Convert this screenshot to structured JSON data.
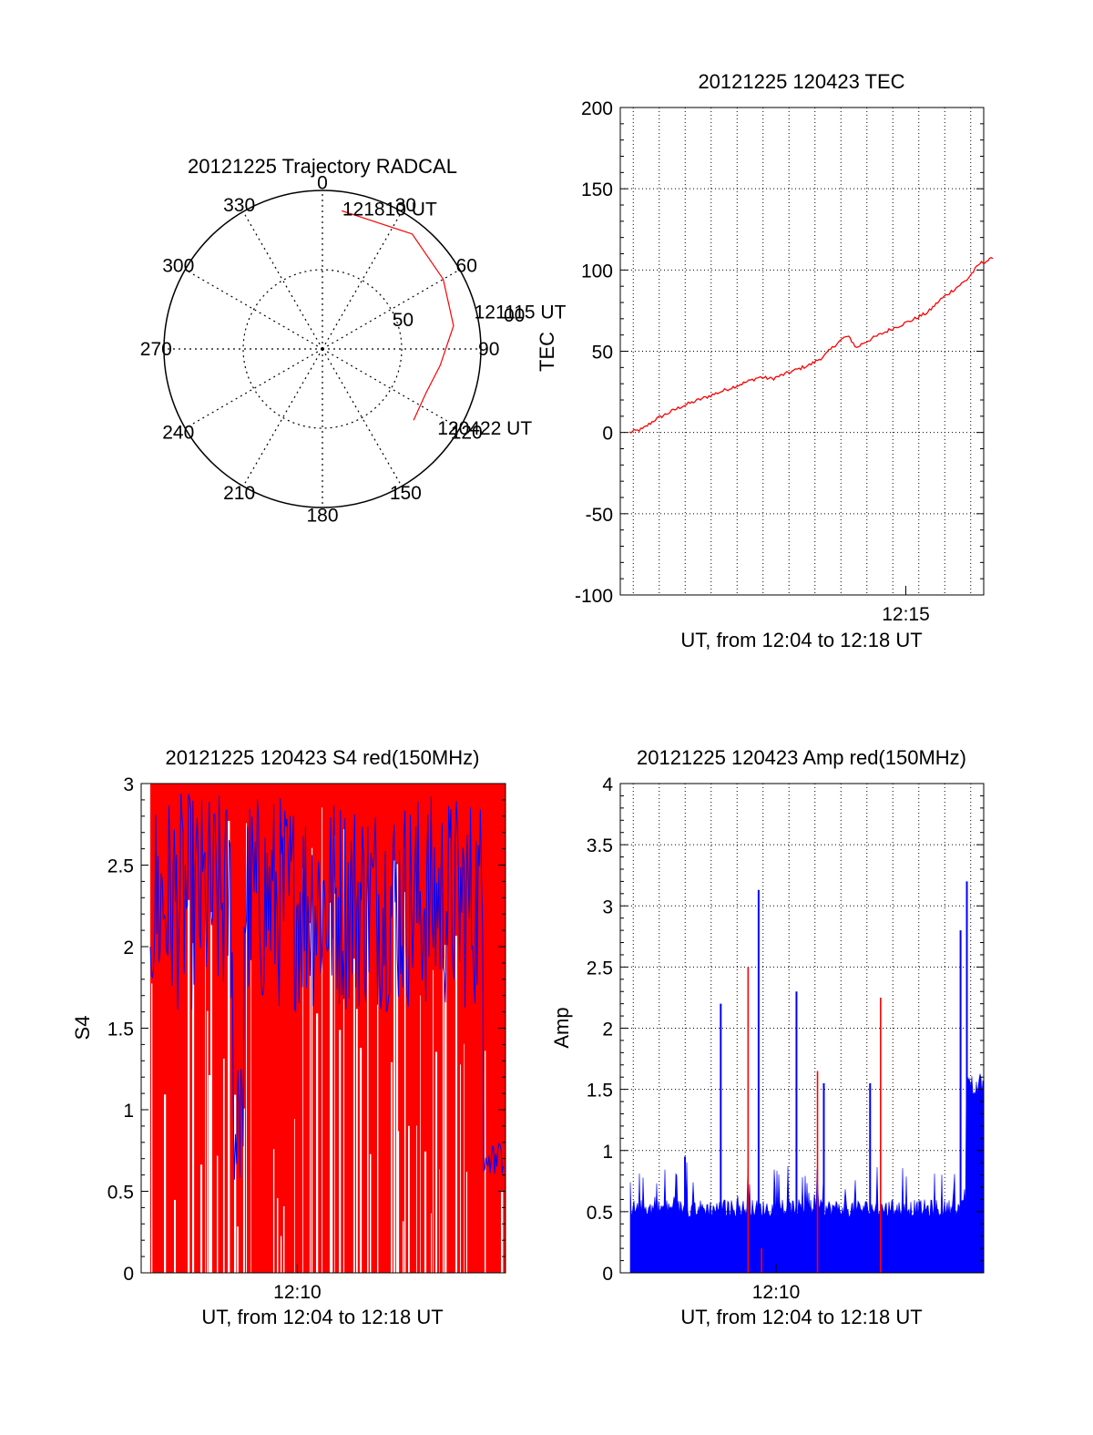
{
  "colors": {
    "primary": "#ff0000",
    "secondary": "#0000ff",
    "axis": "#000000",
    "grid": "#000000"
  },
  "chart_data": [
    {
      "id": "trajectory",
      "type": "polar",
      "title": "20121225 Trajectory RADCAL",
      "angle_labels": [
        "0",
        "30",
        "60",
        "90",
        "120",
        "150",
        "180",
        "210",
        "240",
        "270",
        "300",
        "330"
      ],
      "angles_deg": [
        0,
        30,
        60,
        90,
        120,
        150,
        180,
        210,
        240,
        270,
        300,
        330
      ],
      "radial_ticks": [
        {
          "label": "50",
          "zenith_deg": 50
        }
      ],
      "rmax_deg": 100,
      "series": [
        {
          "color": "#ff0000",
          "points": [
            {
              "az": 8,
              "zen": 88
            },
            {
              "az": 38,
              "zen": 92
            },
            {
              "az": 60,
              "zen": 88
            },
            {
              "az": 80,
              "zen": 84
            },
            {
              "az": 98,
              "zen": 75
            },
            {
              "az": 113,
              "zen": 71
            },
            {
              "az": 128,
              "zen": 73
            }
          ]
        }
      ],
      "annotations": [
        {
          "text": "121810 UT",
          "az": 11,
          "zen": 90
        },
        {
          "text": "121115 UT",
          "az": 77,
          "zen": 103
        },
        {
          "text": "120422 UT",
          "az": 123,
          "zen": 92
        }
      ],
      "ring_label_extra": "00"
    },
    {
      "id": "tec",
      "type": "line",
      "title": "20121225 120423 TEC",
      "ylabel": "TEC",
      "xlabel": "UT, from 12:04 to 12:18 UT",
      "x_range_min": [
        0,
        840
      ],
      "ylim": [
        -100,
        200
      ],
      "yticks": [
        -100,
        -50,
        0,
        50,
        100,
        150,
        200
      ],
      "x_gridlines_min": [
        30,
        90,
        150,
        210,
        270,
        330,
        390,
        450,
        510,
        570,
        630,
        690,
        750,
        810
      ],
      "x_ticklabels": [
        {
          "label": "12:15",
          "minute": 660
        }
      ],
      "series": [
        {
          "color": "#ff0000",
          "x_min": [
            0,
            30,
            60,
            90,
            120,
            180,
            240,
            300,
            330,
            360,
            420,
            450,
            480,
            500,
            510,
            525,
            540,
            600,
            660,
            690,
            720,
            780,
            810,
            840
          ],
          "y": [
            0,
            2,
            8,
            12,
            16,
            22,
            28,
            34,
            33,
            36,
            42,
            47,
            55,
            59,
            58,
            52,
            55,
            63,
            70,
            74,
            82,
            94,
            104,
            107
          ]
        }
      ]
    },
    {
      "id": "s4",
      "type": "bar",
      "title": "20121225 120423 S4 red(150MHz)",
      "ylabel": "S4",
      "xlabel": "UT, from 12:04 to 12:18 UT",
      "x_range_min": [
        0,
        840
      ],
      "ylim": [
        0,
        3
      ],
      "yticks": [
        0,
        0.5,
        1,
        1.5,
        2,
        2.5,
        3
      ],
      "yticklabels": [
        "0",
        "0.5",
        "1",
        "1.5",
        "2",
        "2.5",
        "3"
      ],
      "x_ticklabels": [
        {
          "label": "12:10",
          "minute": 360
        }
      ],
      "series": [
        {
          "name": "",
          "color": "#ff0000",
          "note_values": "dense vertical spikes saturating to 3"
        },
        {
          "name": "",
          "color": "#0000ff"
        }
      ]
    },
    {
      "id": "amp",
      "type": "bar",
      "title": "20121225 120423 Amp red(150MHz)",
      "ylabel": "Amp",
      "xlabel": "UT, from 12:04 to 12:18 UT",
      "x_range_min": [
        0,
        840
      ],
      "ylim": [
        0,
        4
      ],
      "yticks": [
        0,
        0.5,
        1,
        1.5,
        2,
        2.5,
        3,
        3.5,
        4
      ],
      "yticklabels": [
        "0",
        "0.5",
        "1",
        "1.5",
        "2",
        "2.5",
        "3",
        "3.5",
        "4"
      ],
      "x_gridlines_min": [
        30,
        90,
        150,
        210,
        270,
        330,
        390,
        450,
        510,
        570,
        630,
        690,
        750,
        810
      ],
      "x_ticklabels": [
        {
          "label": "12:10",
          "minute": 360
        }
      ],
      "series": [
        {
          "color": "#0000ff",
          "spikes": [
            {
              "minute": 215,
              "value": 2.2
            },
            {
              "minute": 305,
              "value": 3.13
            },
            {
              "minute": 395,
              "value": 2.3
            },
            {
              "minute": 460,
              "value": 1.55
            },
            {
              "minute": 570,
              "value": 1.55
            },
            {
              "minute": 800,
              "value": 3.2
            },
            {
              "minute": 785,
              "value": 2.8
            },
            {
              "minute": 130,
              "value": 0.95
            }
          ],
          "baseline": 0.55
        },
        {
          "color": "#ff0000",
          "spikes": [
            {
              "minute": 280,
              "value": 2.5
            },
            {
              "minute": 445,
              "value": 1.65
            },
            {
              "minute": 595,
              "value": 2.25
            },
            {
              "minute": 312,
              "value": 0.2
            }
          ]
        }
      ]
    }
  ]
}
